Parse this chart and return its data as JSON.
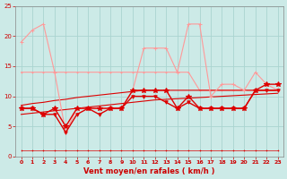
{
  "hours": [
    0,
    1,
    2,
    3,
    4,
    5,
    6,
    7,
    8,
    9,
    10,
    11,
    12,
    13,
    14,
    15,
    16,
    17,
    18,
    19,
    20,
    21,
    22,
    23
  ],
  "wind_gust": [
    19,
    21,
    22,
    14,
    4,
    8,
    8,
    8,
    8,
    8,
    11,
    18,
    18,
    18,
    14,
    22,
    22,
    10,
    12,
    12,
    11,
    14,
    12,
    11
  ],
  "wind_max_light": [
    14,
    14,
    14,
    14,
    14,
    14,
    14,
    14,
    14,
    14,
    14,
    14,
    14,
    14,
    14,
    14,
    11,
    11,
    11,
    11,
    11,
    11,
    11,
    11
  ],
  "wind_mean": [
    8,
    8,
    7,
    8,
    5,
    8,
    8,
    8,
    8,
    8,
    11,
    11,
    11,
    11,
    8,
    10,
    8,
    8,
    8,
    8,
    8,
    11,
    12,
    12
  ],
  "wind_mean2": [
    8,
    8,
    7,
    7,
    4,
    7,
    8,
    7,
    8,
    8,
    10,
    10,
    10,
    9,
    8,
    9,
    8,
    8,
    8,
    8,
    8,
    11,
    11,
    11
  ],
  "trend_gust": [
    8.5,
    8.8,
    9.0,
    9.3,
    9.5,
    9.8,
    10.0,
    10.2,
    10.4,
    10.6,
    10.8,
    11.0,
    11.0,
    11.0,
    11.0,
    11.0,
    11.0,
    11.0,
    11.0,
    11.0,
    11.0,
    11.0,
    11.0,
    11.0
  ],
  "trend_mean": [
    7.0,
    7.2,
    7.4,
    7.6,
    7.8,
    8.0,
    8.2,
    8.4,
    8.6,
    8.8,
    9.0,
    9.2,
    9.4,
    9.5,
    9.6,
    9.7,
    9.8,
    9.9,
    10.0,
    10.1,
    10.2,
    10.3,
    10.4,
    10.5
  ],
  "calm": [
    1,
    1,
    1,
    1,
    1,
    1,
    1,
    1,
    1,
    1,
    1,
    1,
    1,
    1,
    1,
    1,
    1,
    1,
    1,
    1,
    1,
    1,
    1,
    1
  ],
  "ylim": [
    0,
    25
  ],
  "yticks": [
    0,
    5,
    10,
    15,
    20,
    25
  ],
  "bg_color": "#cceae7",
  "grid_color": "#aad4d0",
  "color_gust": "#ff9999",
  "color_mean_dark": "#dd0000",
  "color_mean_med": "#cc2222",
  "xlabel": "Vent moyen/en rafales ( km/h )"
}
